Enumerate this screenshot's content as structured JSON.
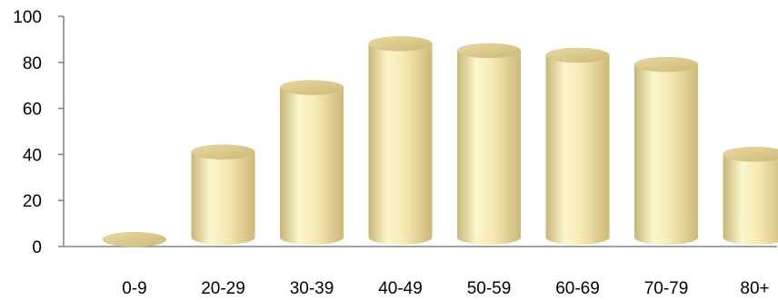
{
  "chart_data": {
    "type": "bar",
    "categories": [
      "0-9",
      "20-29",
      "30-39",
      "40-49",
      "50-59",
      "60-69",
      "70-79",
      "80+"
    ],
    "values": [
      7,
      45,
      73,
      92,
      89,
      87,
      83,
      44
    ],
    "ylim": [
      0,
      100
    ],
    "yticks": [
      0,
      20,
      40,
      60,
      80,
      100
    ],
    "title": "",
    "xlabel": "",
    "ylabel": "",
    "bar_style": "3d-cylinder",
    "grid": false,
    "legend": "none",
    "colors": {
      "bar_light": "#fbf6cc",
      "bar_mid": "#efe0a0",
      "bar_dark": "#c8b676",
      "bar_top": "#dcc988",
      "axis": "#808080"
    }
  }
}
